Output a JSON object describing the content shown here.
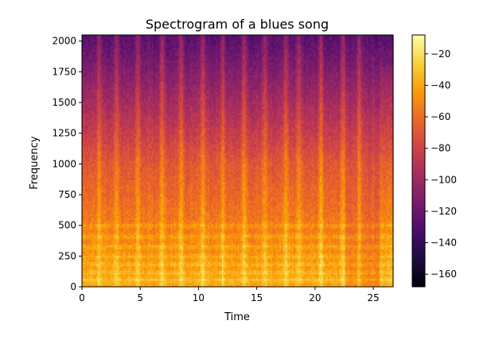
{
  "chart_data": {
    "type": "heatmap",
    "title": "Spectrogram of a blues song",
    "xlabel": "Time",
    "ylabel": "Frequency",
    "xlim": [
      0,
      26.7
    ],
    "ylim": [
      0,
      2050
    ],
    "x_ticks": [
      0,
      5,
      10,
      15,
      20,
      25
    ],
    "x_tick_labels": [
      "0",
      "5",
      "10",
      "15",
      "20",
      "25"
    ],
    "y_ticks": [
      0,
      250,
      500,
      750,
      1000,
      1250,
      1500,
      1750,
      2000
    ],
    "y_tick_labels": [
      "0",
      "250",
      "500",
      "750",
      "1000",
      "1250",
      "1500",
      "1750",
      "2000"
    ],
    "colormap": "inferno",
    "colorbar": {
      "range": [
        -168,
        -8
      ],
      "ticks": [
        -20,
        -40,
        -60,
        -80,
        -100,
        -120,
        -140,
        -160
      ],
      "tick_labels": [
        "−20",
        "−40",
        "−60",
        "−80",
        "−100",
        "−120",
        "−140",
        "−160"
      ],
      "colors": [
        "#000004",
        "#1b0c41",
        "#4a0c6b",
        "#781c6d",
        "#a52c60",
        "#cf4446",
        "#ed6925",
        "#fb9b06",
        "#f7d13d",
        "#fcffa4"
      ]
    },
    "intensity_model": {
      "db_at_0hz": -40,
      "db_at_1000hz": -70,
      "db_at_2000hz": -125,
      "bright_onset_times": [
        1.5,
        3.0,
        4.8,
        6.9,
        8.5,
        10.4,
        12.1,
        13.9,
        15.7,
        17.5,
        18.6,
        20.5,
        22.4,
        23.8
      ],
      "harmonic_band_freqs": [
        60,
        120,
        185,
        250,
        330,
        410,
        500
      ],
      "low_energy_region": {
        "time": [
          22.5,
          25.5
        ],
        "freq_max": 1400
      }
    }
  }
}
